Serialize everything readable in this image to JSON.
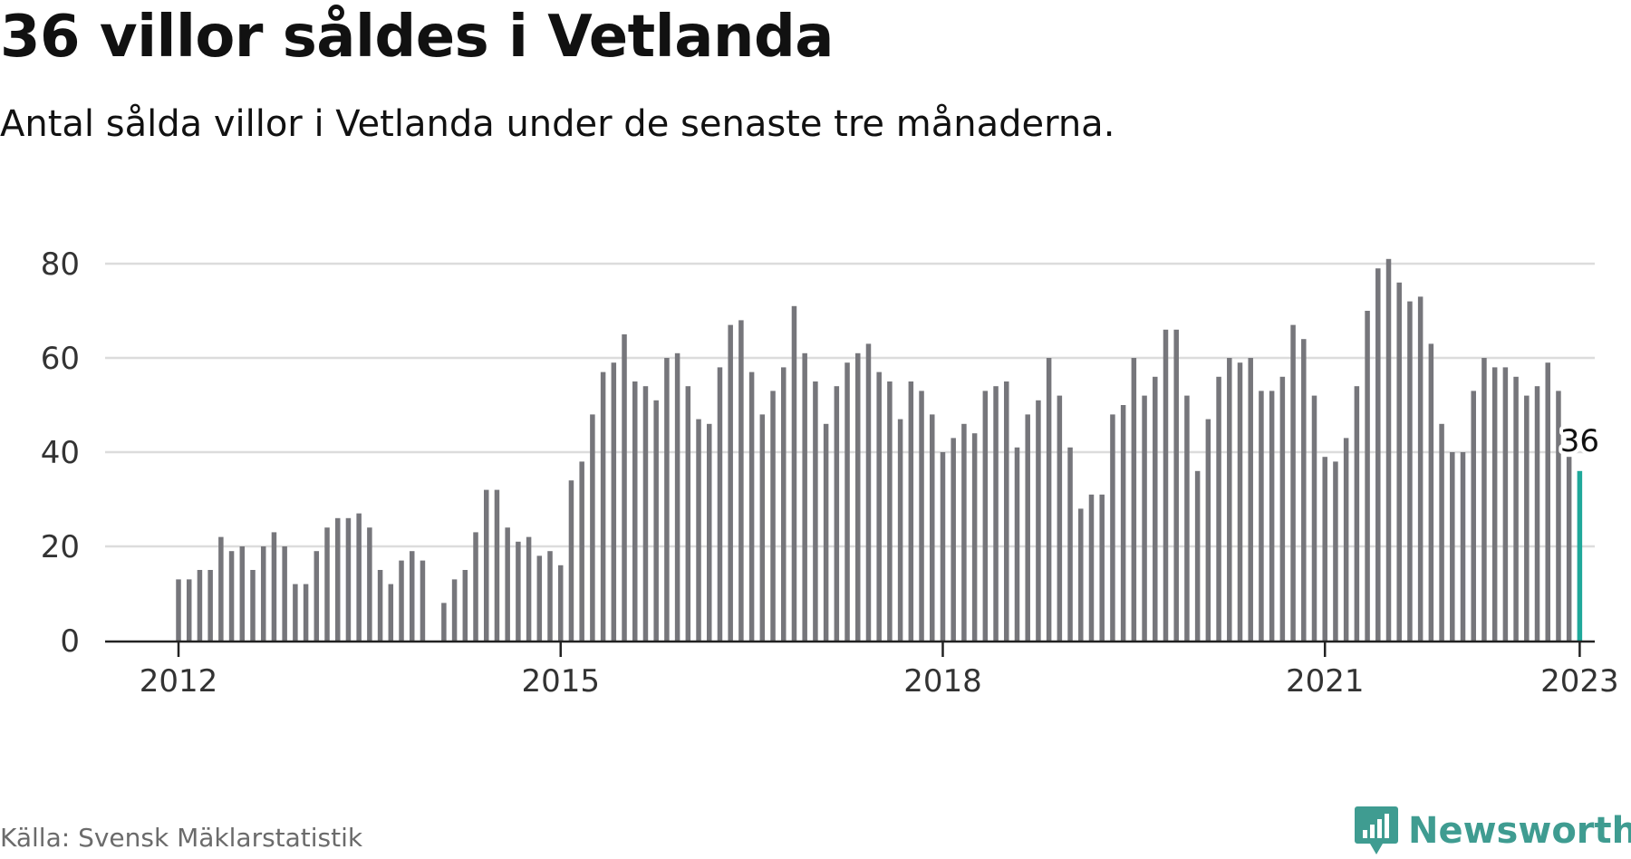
{
  "title": "36 villor såldes i Vetlanda",
  "subtitle": "Antal sålda villor i Vetlanda under de senaste tre månaderna.",
  "source": "Källa: Svensk Mäklarstatistik",
  "brand": "Newsworthy",
  "colors": {
    "bar": "#76767b",
    "highlight": "#1fa89a",
    "grid": "#dcdcdc",
    "axis": "#222222",
    "brand": "#3f9c91"
  },
  "chart_data": {
    "type": "bar",
    "x_start": "2012-01",
    "x_end": "2023-01",
    "ylim": [
      0,
      80
    ],
    "yticks": [
      0,
      20,
      40,
      60,
      80
    ],
    "xticks": [
      "2012",
      "2015",
      "2018",
      "2021",
      "2023"
    ],
    "grid": true,
    "highlight": {
      "index": 132,
      "label": "36"
    },
    "values": [
      13,
      13,
      15,
      15,
      22,
      19,
      20,
      15,
      20,
      23,
      20,
      12,
      12,
      19,
      24,
      26,
      26,
      27,
      24,
      15,
      12,
      17,
      19,
      17,
      null,
      8,
      13,
      15,
      23,
      32,
      32,
      24,
      21,
      22,
      18,
      19,
      16,
      34,
      38,
      48,
      57,
      59,
      65,
      55,
      54,
      51,
      60,
      61,
      54,
      47,
      46,
      58,
      67,
      68,
      57,
      48,
      53,
      58,
      71,
      61,
      55,
      46,
      54,
      59,
      61,
      63,
      57,
      55,
      47,
      55,
      53,
      48,
      40,
      43,
      46,
      44,
      53,
      54,
      55,
      41,
      48,
      51,
      60,
      52,
      41,
      28,
      31,
      31,
      48,
      50,
      60,
      52,
      56,
      66,
      66,
      52,
      36,
      47,
      56,
      60,
      59,
      60,
      53,
      53,
      56,
      67,
      64,
      52,
      39,
      38,
      43,
      54,
      70,
      79,
      81,
      76,
      72,
      73,
      63,
      46,
      40,
      40,
      53,
      60,
      58,
      58,
      56,
      52,
      54,
      59,
      53,
      39,
      36
    ]
  }
}
